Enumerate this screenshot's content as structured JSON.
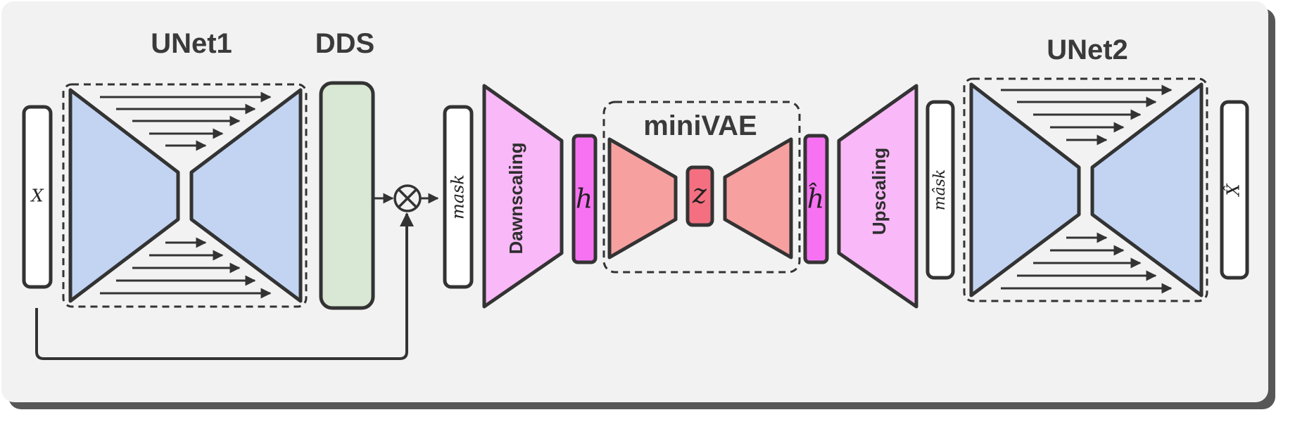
{
  "diagram": {
    "titles": {
      "unet1": "UNet1",
      "dds": "DDS",
      "minivae": "miniVAE",
      "unet2": "UNet2"
    },
    "labels": {
      "input": "X",
      "mask": "mask",
      "downscaling": "Dawnscaling",
      "h": "h",
      "z": "z",
      "h_hat": "ĥ",
      "upscaling": "Upscaling",
      "mask_hat": "mâsk",
      "output": "X̂",
      "multiply": "⊗"
    },
    "colors": {
      "background": "#f2f2f2",
      "stroke": "#333333",
      "unet_fill": "#c2d4f2",
      "dds_fill": "#d8e8d4",
      "scaling_fill": "#f9b8f7",
      "latent_fill": "#f772f2",
      "vae_fill": "#f7a0a0",
      "z_fill": "#f47080",
      "bar_fill": "#ffffff"
    }
  }
}
